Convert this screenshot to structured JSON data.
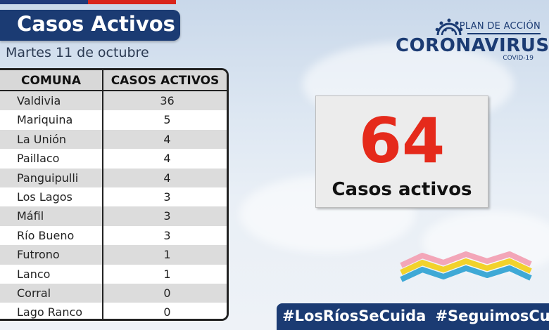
{
  "header": {
    "title": "Casos Activos",
    "date": "Martes 11 de octubre"
  },
  "table": {
    "headers": [
      "COMUNA",
      "CASOS ACTIVOS"
    ],
    "rows": [
      {
        "comuna": "Valdivia",
        "casos": "36"
      },
      {
        "comuna": "Mariquina",
        "casos": "5"
      },
      {
        "comuna": "La Unión",
        "casos": "4"
      },
      {
        "comuna": "Paillaco",
        "casos": "4"
      },
      {
        "comuna": "Panguipulli",
        "casos": "4"
      },
      {
        "comuna": "Los Lagos",
        "casos": "3"
      },
      {
        "comuna": "Máfil",
        "casos": "3"
      },
      {
        "comuna": "Río Bueno",
        "casos": "3"
      },
      {
        "comuna": "Futrono",
        "casos": "1"
      },
      {
        "comuna": "Lanco",
        "casos": "1"
      },
      {
        "comuna": "Corral",
        "casos": "0"
      },
      {
        "comuna": "Lago Ranco",
        "casos": "0"
      }
    ]
  },
  "logo": {
    "plan": "PLAN DE ACCIÓN",
    "name": "CORONAVIRUS",
    "sub": "COVID-19",
    "icon": "virus-icon"
  },
  "summary": {
    "total": "64",
    "label": "Casos activos"
  },
  "footer": {
    "hashtag1": "#LosRíosSeCuida",
    "hashtag2": "#SeguimosCuidándonos"
  },
  "colors": {
    "navy": "#1b3b73",
    "red": "#e52a1b",
    "ribbon": [
      "#f3a6b8",
      "#f2d22b",
      "#3fa9d6"
    ]
  }
}
